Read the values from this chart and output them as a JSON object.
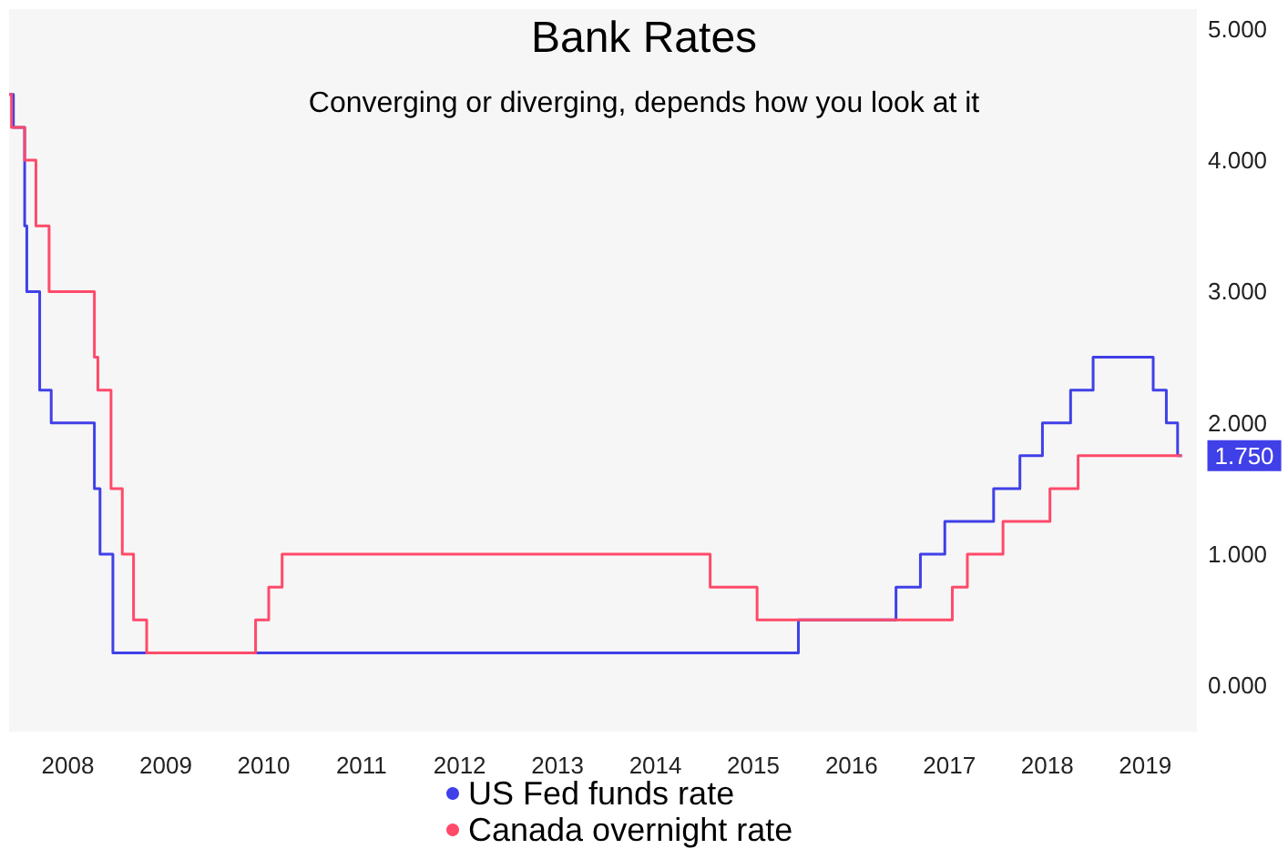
{
  "chart_data": {
    "type": "step",
    "title": "Bank Rates",
    "subtitle": "Converging or diverging, depends how you look at it",
    "xlim": [
      "2007-11-25",
      "2020-01-10"
    ],
    "xticks": [
      {
        "value": "2008-07-01",
        "label": "2008"
      },
      {
        "value": "2009-07-01",
        "label": "2009"
      },
      {
        "value": "2010-07-01",
        "label": "2010"
      },
      {
        "value": "2011-07-01",
        "label": "2011"
      },
      {
        "value": "2012-07-01",
        "label": "2012"
      },
      {
        "value": "2013-07-01",
        "label": "2013"
      },
      {
        "value": "2014-07-01",
        "label": "2014"
      },
      {
        "value": "2015-07-01",
        "label": "2015"
      },
      {
        "value": "2016-07-01",
        "label": "2016"
      },
      {
        "value": "2017-07-01",
        "label": "2017"
      },
      {
        "value": "2018-07-01",
        "label": "2018"
      },
      {
        "value": "2019-07-01",
        "label": "2019"
      }
    ],
    "ylim": [
      -0.35,
      5.15
    ],
    "yticks": [
      {
        "value": 0,
        "label": "0.000"
      },
      {
        "value": 1,
        "label": "1.000"
      },
      {
        "value": 2,
        "label": "2.000"
      },
      {
        "value": 3,
        "label": "3.000"
      },
      {
        "value": 4,
        "label": "4.000"
      },
      {
        "value": 5,
        "label": "5.000"
      }
    ],
    "series": [
      {
        "name": "US Fed funds rate",
        "color": "#4040e8",
        "x": [
          "2007-11-25",
          "2007-12-11",
          "2008-01-22",
          "2008-01-30",
          "2008-03-18",
          "2008-04-30",
          "2008-10-08",
          "2008-10-29",
          "2008-12-16",
          "2015-12-16",
          "2016-12-14",
          "2017-03-15",
          "2017-06-14",
          "2017-12-13",
          "2018-03-21",
          "2018-06-13",
          "2018-09-26",
          "2018-12-19",
          "2019-07-31",
          "2019-09-18",
          "2019-10-30",
          "2019-11-15"
        ],
        "values": [
          4.5,
          4.25,
          3.5,
          3.0,
          2.25,
          2.0,
          1.5,
          1.0,
          0.25,
          0.5,
          0.75,
          1.0,
          1.25,
          1.5,
          1.75,
          2.0,
          2.25,
          2.5,
          2.25,
          2.0,
          1.75,
          1.75
        ]
      },
      {
        "name": "Canada overnight rate",
        "color": "#ff4a6a",
        "x": [
          "2007-11-25",
          "2007-12-04",
          "2008-01-22",
          "2008-03-04",
          "2008-04-22",
          "2008-10-08",
          "2008-10-21",
          "2008-12-09",
          "2009-01-20",
          "2009-03-03",
          "2009-04-21",
          "2010-06-01",
          "2010-07-20",
          "2010-09-08",
          "2015-01-21",
          "2015-07-15",
          "2017-07-12",
          "2017-09-06",
          "2018-01-17",
          "2018-07-11",
          "2018-10-24",
          "2019-11-15"
        ],
        "values": [
          4.5,
          4.25,
          4.0,
          3.5,
          3.0,
          2.5,
          2.25,
          1.5,
          1.0,
          0.5,
          0.25,
          0.5,
          0.75,
          1.0,
          0.75,
          0.5,
          0.75,
          1.0,
          1.25,
          1.5,
          1.75,
          1.75
        ]
      }
    ],
    "annotations": [
      {
        "text": "1.750",
        "x": "2019-11-15",
        "y": 1.75
      }
    ],
    "legend": "bottom",
    "marker": "none",
    "grid": false
  }
}
